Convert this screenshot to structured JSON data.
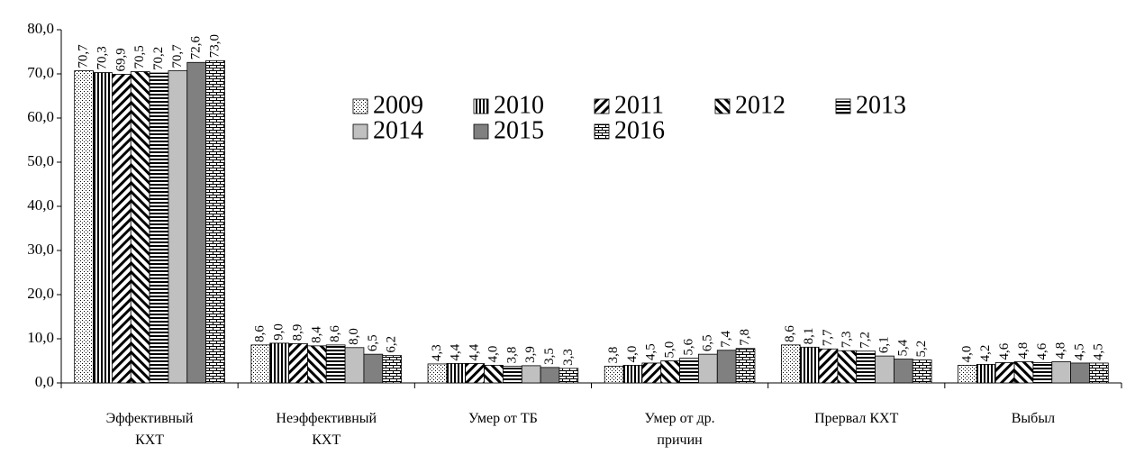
{
  "chart_data": {
    "type": "bar",
    "categories": [
      "Эффективный КХТ",
      "Неэффективный КХТ",
      "Умер от ТБ",
      "Умер от др. причин",
      "Прервал КХТ",
      "Выбыл"
    ],
    "series": [
      {
        "name": "2009",
        "color": "#ffffff",
        "pattern": "dots",
        "values": [
          70.7,
          8.6,
          4.3,
          3.8,
          8.6,
          4.0
        ],
        "value_labels": [
          "70,7",
          "8,6",
          "4,3",
          "3,8",
          "8,6",
          "4,0"
        ]
      },
      {
        "name": "2010",
        "color": "#ffffff",
        "pattern": "vertical",
        "values": [
          70.3,
          9.0,
          4.4,
          4.0,
          8.1,
          4.2
        ],
        "value_labels": [
          "70,3",
          "9,0",
          "4,4",
          "4,0",
          "8,1",
          "4,2"
        ]
      },
      {
        "name": "2011",
        "color": "#ffffff",
        "pattern": "diagonal-up",
        "values": [
          69.9,
          8.9,
          4.4,
          4.5,
          7.7,
          4.6
        ],
        "value_labels": [
          "69,9",
          "8,9",
          "4,4",
          "4,5",
          "7,7",
          "4,6"
        ]
      },
      {
        "name": "2012",
        "color": "#ffffff",
        "pattern": "diagonal-down",
        "values": [
          70.5,
          8.4,
          4.0,
          5.0,
          7.3,
          4.8
        ],
        "value_labels": [
          "70,5",
          "8,4",
          "4,0",
          "5,0",
          "7,3",
          "4,8"
        ]
      },
      {
        "name": "2013",
        "color": "#ffffff",
        "pattern": "horizontal",
        "values": [
          70.2,
          8.6,
          3.8,
          5.6,
          7.2,
          4.6
        ],
        "value_labels": [
          "70,2",
          "8,6",
          "3,8",
          "5,6",
          "7,2",
          "4,6"
        ]
      },
      {
        "name": "2014",
        "color": "#c0c0c0",
        "pattern": "solid",
        "values": [
          70.7,
          8.0,
          3.9,
          6.5,
          6.1,
          4.8
        ],
        "value_labels": [
          "70,7",
          "8,0",
          "3,9",
          "6,5",
          "6,1",
          "4,8"
        ]
      },
      {
        "name": "2015",
        "color": "#808080",
        "pattern": "solid",
        "values": [
          72.6,
          6.5,
          3.5,
          7.4,
          5.4,
          4.5
        ],
        "value_labels": [
          "72,6",
          "6,5",
          "3,5",
          "7,4",
          "5,4",
          "4,5"
        ]
      },
      {
        "name": "2016",
        "color": "#ffffff",
        "pattern": "brick",
        "values": [
          73.0,
          6.2,
          3.3,
          7.8,
          5.2,
          4.5
        ],
        "value_labels": [
          "73,0",
          "6,2",
          "3,3",
          "7,8",
          "5,2",
          "4,5"
        ]
      }
    ],
    "ylim": [
      0,
      80
    ],
    "yticks": [
      {
        "value": 0,
        "label": "0,0"
      },
      {
        "value": 10,
        "label": "10,0"
      },
      {
        "value": 20,
        "label": "20,0"
      },
      {
        "value": 30,
        "label": "30,0"
      },
      {
        "value": 40,
        "label": "40,0"
      },
      {
        "value": 50,
        "label": "50,0"
      },
      {
        "value": 60,
        "label": "60,0"
      },
      {
        "value": 70,
        "label": "70,0"
      },
      {
        "value": 80,
        "label": "80,0"
      }
    ]
  }
}
